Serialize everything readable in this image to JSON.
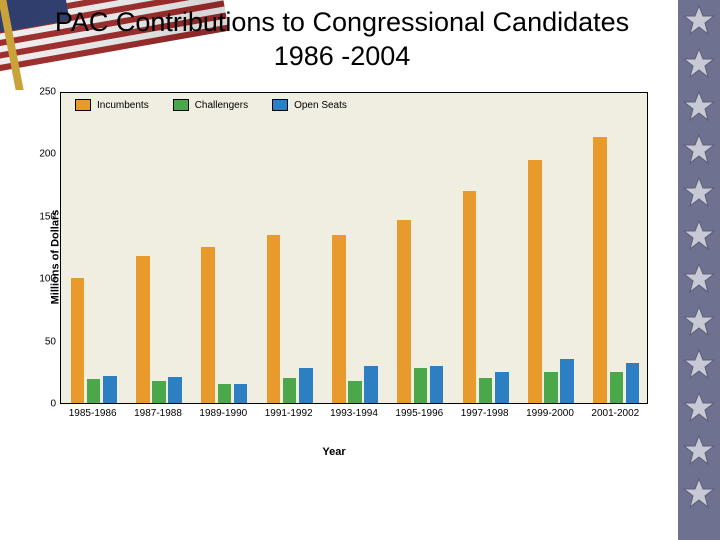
{
  "title": "PAC Contributions to Congressional Candidates 1986 -2004",
  "starStrip": {
    "count": 12,
    "bg": "#6e7290",
    "fill": "#c7c9d4",
    "stroke": "#5a5e78"
  },
  "flag": {
    "fieldBlue": "#2c3b6c",
    "stripeRed": "#9e2b2b",
    "stripeWhite": "#efefef",
    "poleGold": "#c9a23a"
  },
  "chart": {
    "type": "grouped-bar",
    "panelBg": "#efeee0",
    "border": "#000000",
    "yAxisTitle": "Millions of Dollars",
    "xAxisTitle": "Year",
    "yAxis": {
      "min": 0,
      "max": 250,
      "step": 50,
      "tickColor": "#000000",
      "tickFont": 10
    },
    "groupGapFrac": 0.3,
    "barGapFrac": 0.06,
    "legend": {
      "position": "top-left-inside",
      "items": [
        {
          "label": "Incumbents",
          "color": "#e99a2c"
        },
        {
          "label": "Challengers",
          "color": "#4aa84a"
        },
        {
          "label": "Open Seats",
          "color": "#2d7fc4"
        }
      ]
    },
    "categories": [
      "1985-1986",
      "1987-1988",
      "1989-1990",
      "1991-1992",
      "1993-1994",
      "1995-1996",
      "1997-1998",
      "1999-2000",
      "2001-2002"
    ],
    "series": [
      {
        "name": "Incumbents",
        "color": "#e99a2c",
        "values": [
          100,
          118,
          125,
          135,
          135,
          147,
          170,
          195,
          213
        ]
      },
      {
        "name": "Challengers",
        "color": "#4aa84a",
        "values": [
          19,
          18,
          15,
          20,
          18,
          28,
          20,
          25,
          25
        ]
      },
      {
        "name": "Open Seats",
        "color": "#2d7fc4",
        "values": [
          22,
          21,
          15,
          28,
          30,
          30,
          25,
          35,
          32
        ]
      }
    ],
    "textColor": "#000000",
    "labelFontSize": 10,
    "axisTitleFontSize": 11
  }
}
